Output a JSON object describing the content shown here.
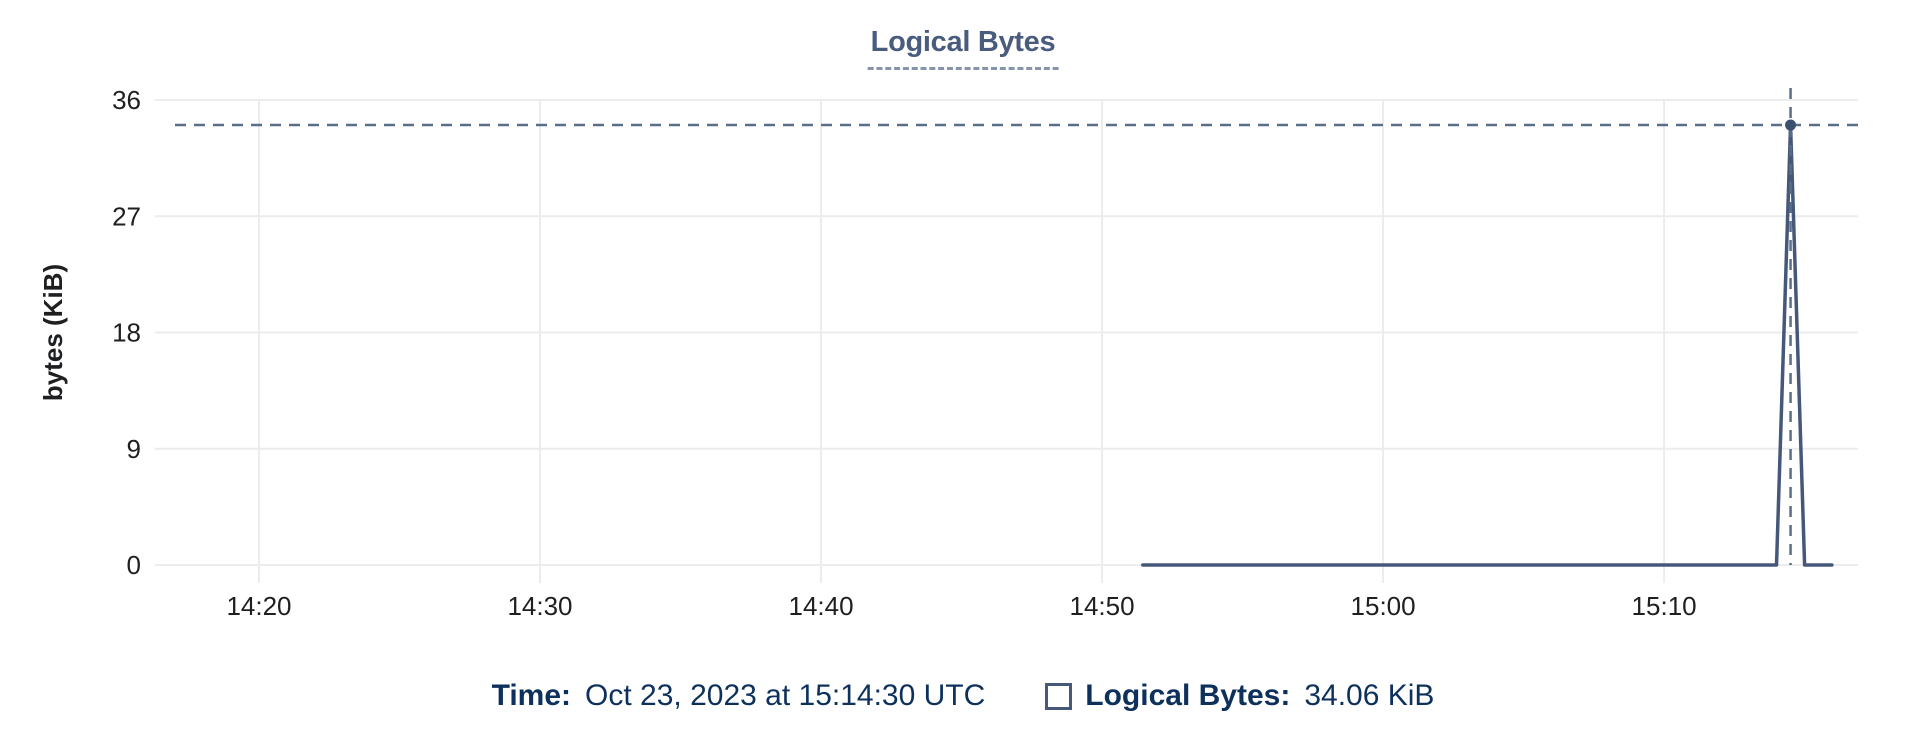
{
  "chart_data": {
    "type": "line",
    "title": "Logical Bytes",
    "xlabel": "",
    "ylabel": "bytes (KiB)",
    "grid": true,
    "x_unit": "minutes after 14:00 UTC on Oct 23, 2023",
    "x_tick_labels": [
      "14:20",
      "14:30",
      "14:40",
      "14:50",
      "15:00",
      "15:10"
    ],
    "x_tick_minutes": [
      20,
      30,
      40,
      50,
      60,
      70
    ],
    "x_range_minutes": [
      16.3,
      76.9
    ],
    "y_ticks": [
      0,
      9,
      18,
      27,
      36
    ],
    "ylim": [
      0,
      36
    ],
    "series": [
      {
        "name": "Logical Bytes",
        "unit": "KiB",
        "points": [
          [
            51.45,
            0
          ],
          [
            74.0,
            0
          ],
          [
            74.5,
            34.06
          ],
          [
            75.0,
            0
          ],
          [
            75.97,
            0
          ]
        ]
      }
    ],
    "threshold_line": {
      "value": 34.06,
      "style": "dashed"
    },
    "crosshair": {
      "x_minute": 74.5,
      "style": "dashed"
    },
    "highlight_point": {
      "x_minute": 74.5,
      "value": 34.06
    }
  },
  "legend": {
    "time_label": "Time:",
    "time_value": "Oct 23, 2023 at 15:14:30 UTC",
    "series_label": "Logical Bytes:",
    "series_value": "34.06 KiB"
  },
  "colors": {
    "title_text": "#4a5c7e",
    "title_underline": "#8694ac",
    "series_line": "#46587a",
    "point_fill": "#3d5070",
    "dashed_line": "#5a6e87",
    "grid_line": "#ececec",
    "tick_text": "#1e1f21",
    "legend_text": "#0e315c",
    "legend_swatch_border": "#47597b"
  }
}
